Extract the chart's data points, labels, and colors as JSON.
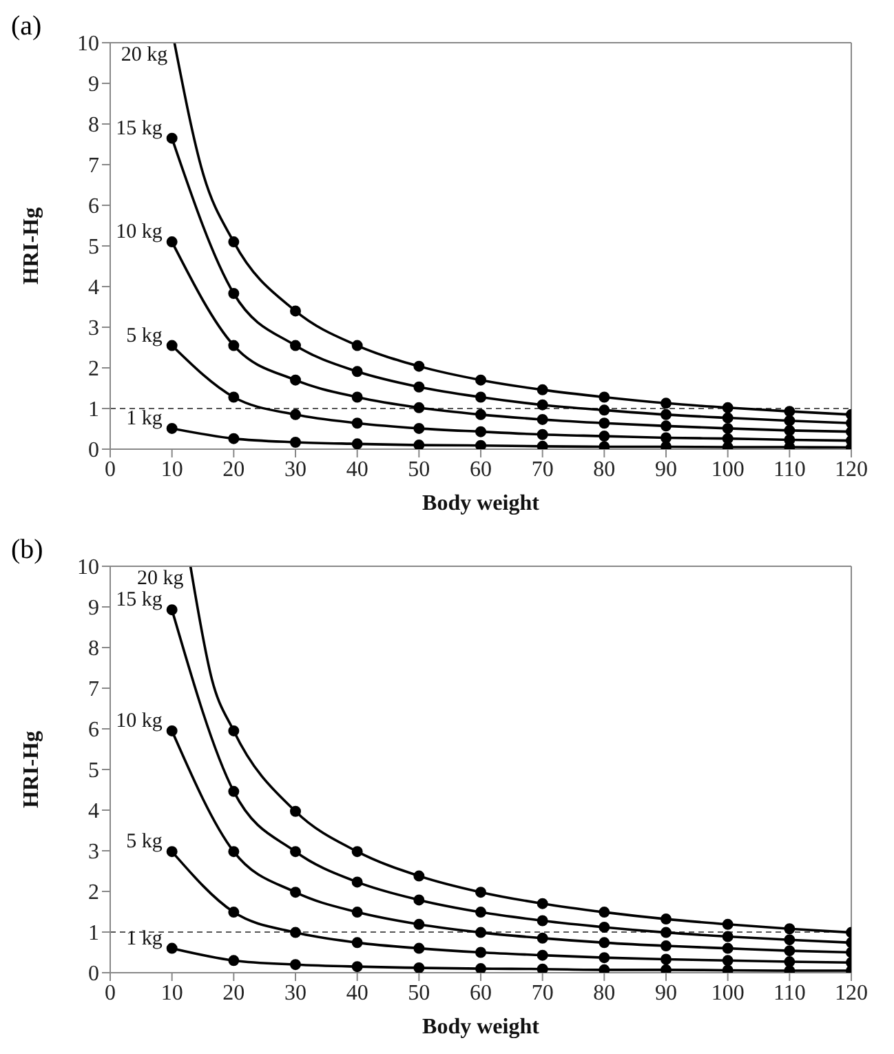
{
  "chart_data": [
    {
      "type": "line",
      "title": "(a)",
      "xlabel": "Body weight",
      "ylabel": "HRI-Hg",
      "x": [
        10,
        20,
        30,
        40,
        50,
        60,
        70,
        80,
        90,
        100,
        110,
        120
      ],
      "xlim": [
        0,
        120
      ],
      "xticks": [
        0,
        10,
        20,
        30,
        40,
        50,
        60,
        70,
        80,
        90,
        100,
        110,
        120
      ],
      "ylim": [
        0,
        10
      ],
      "yticks": [
        0,
        1,
        2,
        3,
        4,
        5,
        6,
        7,
        8,
        9,
        10
      ],
      "marker": "circle",
      "line_style": "solid",
      "ref_lines": [
        {
          "axis": "y",
          "value": 1,
          "color": "#555555",
          "line_style": "dashed"
        }
      ],
      "series": [
        {
          "name": "20 kg",
          "color": "#000000",
          "x": [
            10.4,
            15,
            20,
            30,
            40,
            50,
            60,
            70,
            80,
            90,
            100,
            110,
            120
          ],
          "values": [
            10,
            6.8,
            5.1,
            3.4,
            2.55,
            2.04,
            1.7,
            1.46,
            1.28,
            1.13,
            1.02,
            0.93,
            0.85
          ]
        },
        {
          "name": "15 kg",
          "color": "#000000",
          "values": [
            7.65,
            3.83,
            2.55,
            1.91,
            1.53,
            1.28,
            1.09,
            0.96,
            0.85,
            0.77,
            0.7,
            0.64
          ]
        },
        {
          "name": "10 kg",
          "color": "#000000",
          "values": [
            5.1,
            2.55,
            1.7,
            1.28,
            1.02,
            0.85,
            0.73,
            0.64,
            0.57,
            0.51,
            0.46,
            0.43
          ]
        },
        {
          "name": "5 kg",
          "color": "#000000",
          "values": [
            2.55,
            1.28,
            0.85,
            0.64,
            0.51,
            0.43,
            0.36,
            0.32,
            0.28,
            0.26,
            0.23,
            0.21
          ]
        },
        {
          "name": "1 kg",
          "color": "#000000",
          "values": [
            0.51,
            0.26,
            0.17,
            0.13,
            0.1,
            0.09,
            0.07,
            0.06,
            0.06,
            0.05,
            0.05,
            0.04
          ]
        }
      ]
    },
    {
      "type": "line",
      "title": "(b)",
      "xlabel": "Body weight",
      "ylabel": "HRI-Hg",
      "x": [
        10,
        20,
        30,
        40,
        50,
        60,
        70,
        80,
        90,
        100,
        110,
        120
      ],
      "xlim": [
        0,
        120
      ],
      "xticks": [
        0,
        10,
        20,
        30,
        40,
        50,
        60,
        70,
        80,
        90,
        100,
        110,
        120
      ],
      "ylim": [
        0,
        10
      ],
      "yticks": [
        0,
        1,
        2,
        3,
        4,
        5,
        6,
        7,
        8,
        9,
        10
      ],
      "marker": "circle",
      "line_style": "solid",
      "ref_lines": [
        {
          "axis": "y",
          "value": 1,
          "color": "#555555",
          "line_style": "dashed"
        }
      ],
      "series": [
        {
          "name": "20 kg",
          "color": "#000000",
          "x": [
            13,
            16.5,
            20,
            30,
            40,
            50,
            60,
            70,
            80,
            90,
            100,
            110,
            120
          ],
          "values": [
            10,
            7.2,
            5.95,
            3.97,
            2.98,
            2.38,
            1.98,
            1.7,
            1.49,
            1.32,
            1.19,
            1.08,
            0.99
          ]
        },
        {
          "name": "15 kg",
          "color": "#000000",
          "values": [
            8.93,
            4.46,
            2.98,
            2.23,
            1.79,
            1.49,
            1.28,
            1.12,
            0.99,
            0.89,
            0.81,
            0.74
          ]
        },
        {
          "name": "10 kg",
          "color": "#000000",
          "values": [
            5.95,
            2.98,
            1.98,
            1.49,
            1.19,
            0.99,
            0.85,
            0.74,
            0.66,
            0.6,
            0.54,
            0.5
          ]
        },
        {
          "name": "5 kg",
          "color": "#000000",
          "values": [
            2.98,
            1.49,
            0.99,
            0.74,
            0.6,
            0.5,
            0.43,
            0.37,
            0.33,
            0.3,
            0.27,
            0.25
          ]
        },
        {
          "name": "1 kg",
          "color": "#000000",
          "values": [
            0.6,
            0.3,
            0.2,
            0.15,
            0.12,
            0.1,
            0.09,
            0.07,
            0.07,
            0.06,
            0.05,
            0.05
          ]
        }
      ]
    }
  ]
}
